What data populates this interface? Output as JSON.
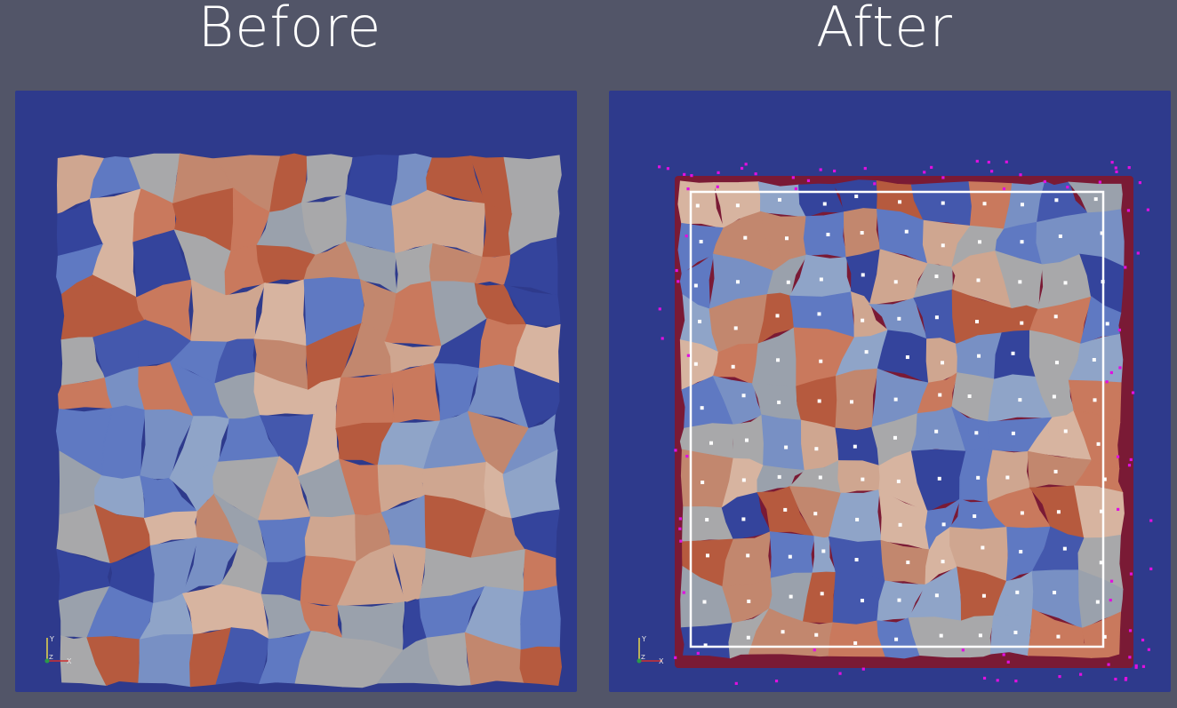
{
  "titles": {
    "before": "Before",
    "after": "After"
  },
  "colors": {
    "page_background": "#525568",
    "panel_background": "#2e3a8c",
    "boundary_region": "#7a1a35",
    "grain_palette": [
      "#9aa1ac",
      "#a8a8aa",
      "#c2876e",
      "#c9795d",
      "#b65a3e",
      "#8fa4c8",
      "#7890c4",
      "#5f79c2",
      "#4458ad",
      "#34449c",
      "#cfa690",
      "#d7b4a0"
    ],
    "grain_centroid": "#ffffff",
    "boundary_point": "#e010e0",
    "crop_box": "#ffffff"
  },
  "axes_triad": {
    "x_label": "X",
    "y_label": "Y",
    "z_label": "Z"
  },
  "icons": {
    "axes_triad": "axes-triad-icon"
  }
}
